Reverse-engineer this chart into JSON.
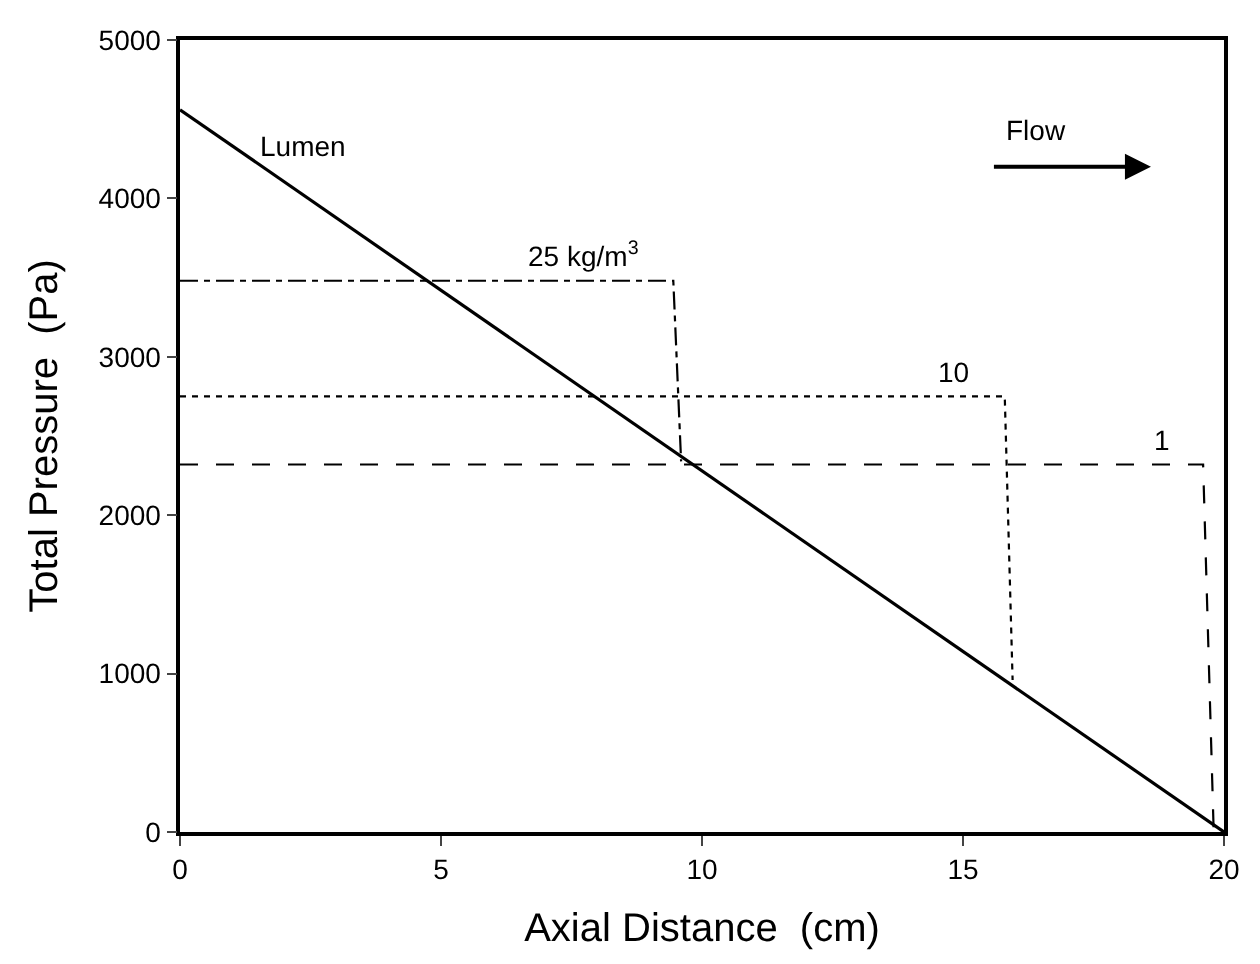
{
  "chart_data": {
    "type": "line",
    "xlabel": "Axial Distance  (cm)",
    "ylabel": "Total Pressure  (Pa)",
    "xlim": [
      0,
      20
    ],
    "xticks": [
      0,
      5,
      10,
      15,
      20
    ],
    "ylim": [
      0,
      5000
    ],
    "yticks": [
      0,
      1000,
      2000,
      3000,
      4000,
      5000
    ],
    "legend": false,
    "marker": "none",
    "series": [
      {
        "name": "Lumen",
        "color": "#000000",
        "line_style": "solid",
        "x": [
          0,
          20
        ],
        "values": [
          4560,
          0
        ]
      },
      {
        "name": "25 kg/m$^{3}$",
        "color": "#000000",
        "line_style": "dashdot",
        "x": [
          0,
          9.45,
          9.6
        ],
        "values": [
          3480,
          3480,
          2340
        ]
      },
      {
        "name": "10",
        "color": "#000000",
        "line_style": "dotted",
        "x": [
          0,
          15.8,
          15.95
        ],
        "values": [
          2750,
          2750,
          960
        ]
      },
      {
        "name": "1",
        "color": "#000000",
        "line_style": "dashed",
        "x": [
          0,
          19.6,
          19.8
        ],
        "values": [
          2320,
          2320,
          30
        ]
      }
    ],
    "annotations": [
      "Flow"
    ]
  }
}
